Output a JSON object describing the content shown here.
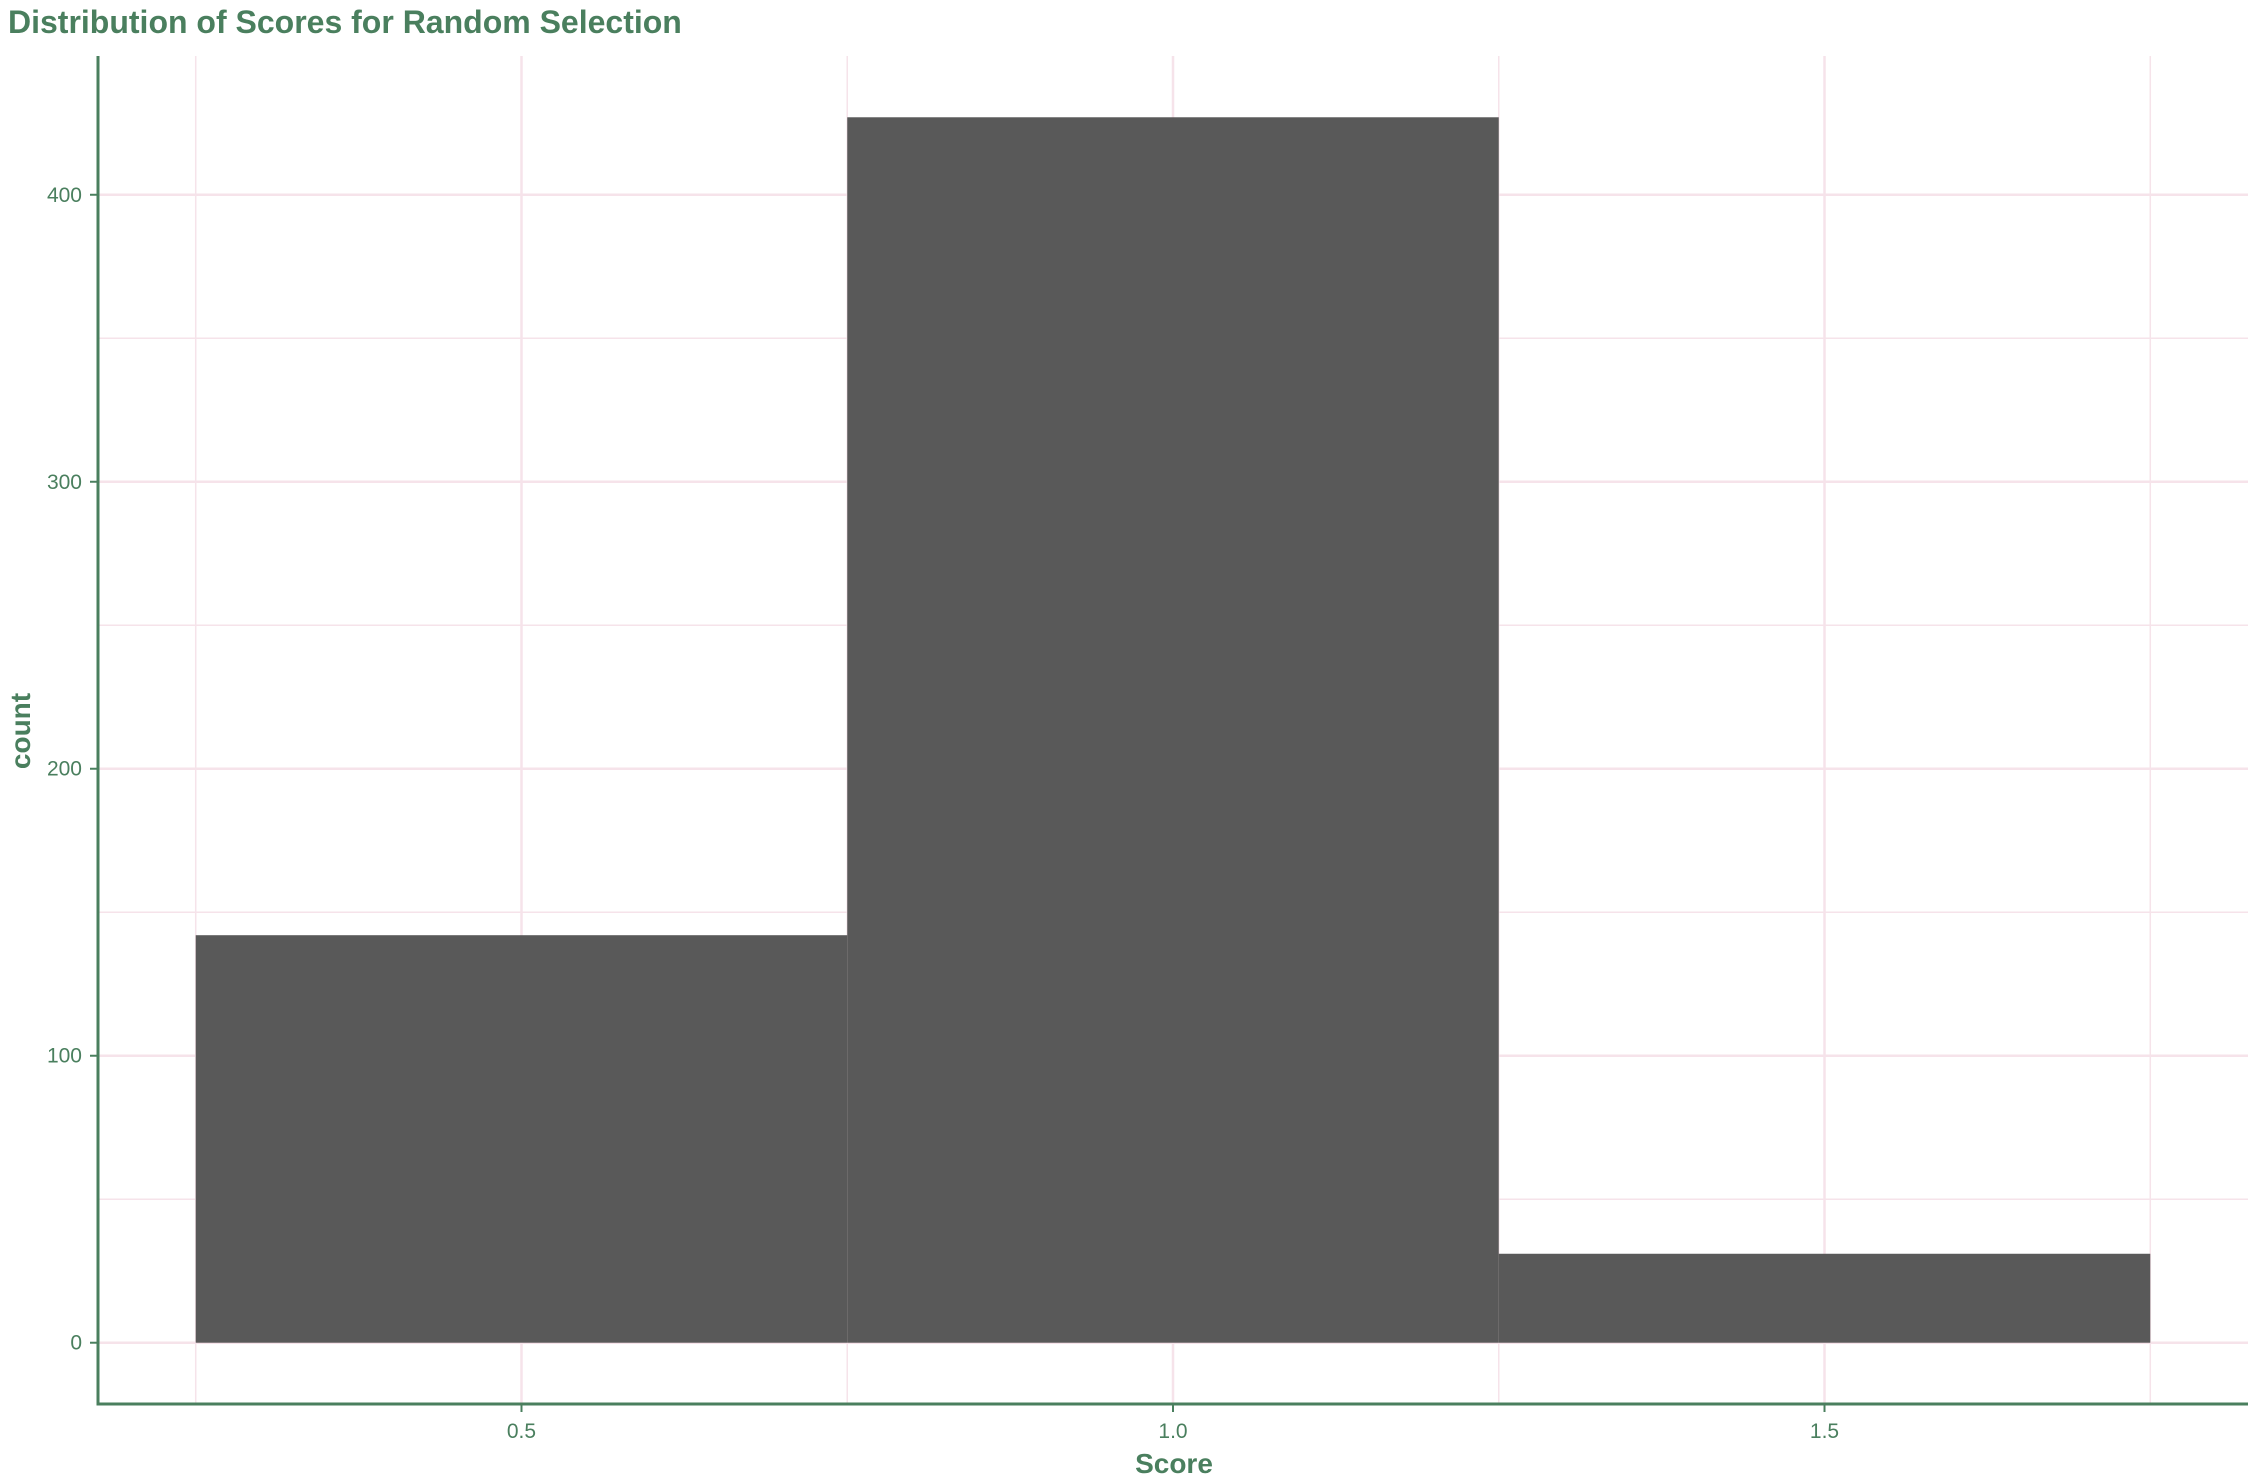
{
  "chart_data": {
    "type": "bar",
    "title": "Distribution of Scores for Random Selection",
    "xlabel": "Score",
    "ylabel": "count",
    "bins": [
      {
        "start": 0.25,
        "end": 0.75,
        "count": 142
      },
      {
        "start": 0.75,
        "end": 1.25,
        "count": 427
      },
      {
        "start": 1.25,
        "end": 1.75,
        "count": 31
      }
    ],
    "xlim": [
      0.175,
      1.825
    ],
    "ylim": [
      -21.35,
      448.35
    ],
    "x_ticks": [
      0.5,
      1.0,
      1.5
    ],
    "x_tick_labels": [
      "0.5",
      "1.0",
      "1.5"
    ],
    "x_minor_ticks": [
      0.25,
      0.75,
      1.25,
      1.75
    ],
    "y_ticks": [
      0,
      100,
      200,
      300,
      400
    ],
    "y_tick_labels": [
      "0",
      "100",
      "200",
      "300",
      "400"
    ],
    "y_minor_ticks": [
      50,
      150,
      250,
      350
    ],
    "grid": true,
    "legend": "none",
    "colors": {
      "bar": "#595959",
      "text": "#4a7f5e",
      "axis": "#4a7f5e",
      "grid": "#f6e3ea"
    }
  }
}
